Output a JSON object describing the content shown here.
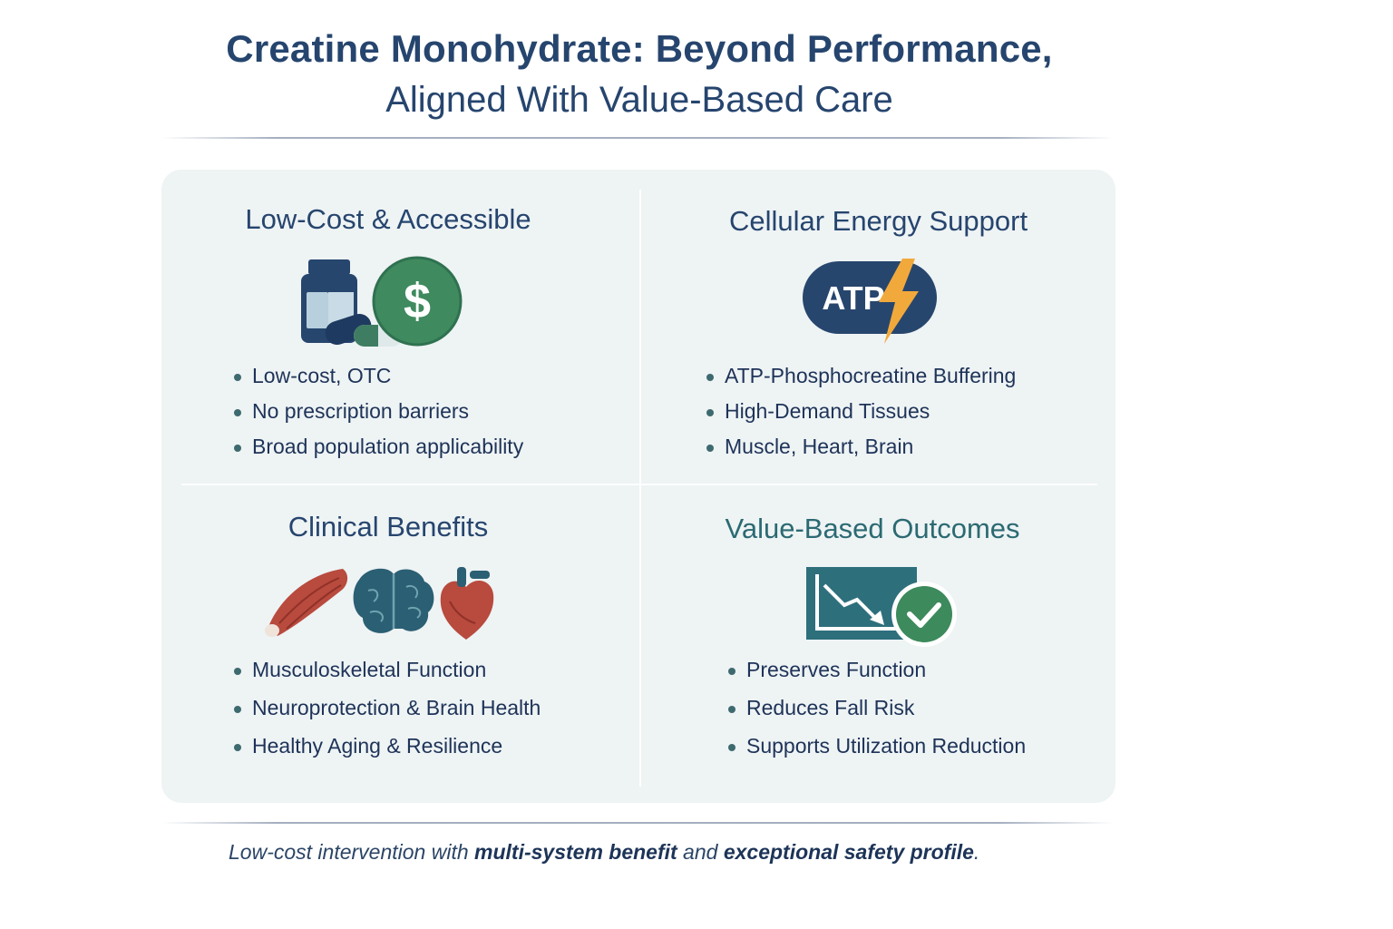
{
  "header": {
    "title": "Creatine Monohydrate: Beyond Performance,",
    "subtitle": "Aligned With Value-Based Care"
  },
  "quadrants": [
    {
      "heading": "Low-Cost & Accessible",
      "icons": [
        "supplement-bottle-icon",
        "capsule-icon",
        "dollar-coin-icon"
      ],
      "bullets": [
        "Low-cost, OTC",
        "No prescription barriers",
        "Broad population applicability"
      ]
    },
    {
      "heading": "Cellular Energy Support",
      "icon_text": "ATP",
      "icons": [
        "atp-lightning-icon"
      ],
      "bullets": [
        "ATP-Phosphocreatine Buffering",
        "High-Demand Tissues",
        "Muscle, Heart, Brain"
      ]
    },
    {
      "heading": "Clinical Benefits",
      "icons": [
        "muscle-icon",
        "brain-icon",
        "heart-icon"
      ],
      "bullets": [
        "Musculoskeletal Function",
        "Neuroprotection & Brain Health",
        "Healthy Aging & Resilience"
      ]
    },
    {
      "heading": "Value-Based Outcomes",
      "icons": [
        "downward-trend-chart-icon",
        "checkmark-badge-icon"
      ],
      "bullets": [
        "Preserves Function",
        "Reduces Fall Risk",
        "Supports Utilization Reduction"
      ]
    }
  ],
  "footer": {
    "lead": "Low-cost intervention with ",
    "emph1": "multi-system benefit",
    "mid": " and ",
    "emph2": "exceptional safety profile",
    "end": "."
  },
  "colors": {
    "navy": "#26456e",
    "teal": "#2b6a72",
    "green": "#3d8a5c",
    "panel": "#eef3f4",
    "lightning": "#f2a93b",
    "muscle_red": "#b84a3e"
  }
}
